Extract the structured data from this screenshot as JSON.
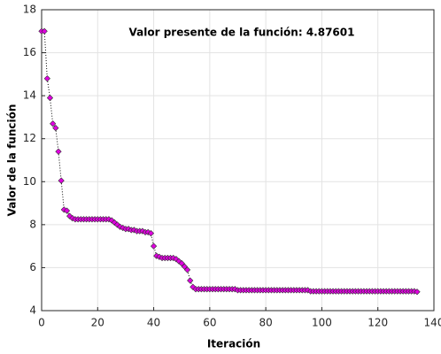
{
  "chart_data": {
    "type": "line",
    "title": "Valor presente de la función: 4.87601",
    "x_label": "Iteración",
    "y_label": "Valor de la función",
    "x": [
      0,
      1,
      2,
      3,
      4,
      5,
      6,
      7,
      8,
      9,
      10,
      11,
      12,
      13,
      14,
      15,
      16,
      17,
      18,
      19,
      20,
      21,
      22,
      23,
      24,
      25,
      26,
      27,
      28,
      29,
      30,
      31,
      32,
      33,
      34,
      35,
      36,
      37,
      38,
      39,
      40,
      41,
      42,
      43,
      44,
      45,
      46,
      47,
      48,
      49,
      50,
      51,
      52,
      53,
      54,
      55,
      56,
      57,
      58,
      59,
      60,
      61,
      62,
      63,
      64,
      65,
      66,
      67,
      68,
      69,
      70,
      71,
      72,
      73,
      74,
      75,
      76,
      77,
      78,
      79,
      80,
      81,
      82,
      83,
      84,
      85,
      86,
      87,
      88,
      89,
      90,
      91,
      92,
      93,
      94,
      95,
      96,
      97,
      98,
      99,
      100,
      101,
      102,
      103,
      104,
      105,
      106,
      107,
      108,
      109,
      110,
      111,
      112,
      113,
      114,
      115,
      116,
      117,
      118,
      119,
      120,
      121,
      122,
      123,
      124,
      125,
      126,
      127,
      128,
      129,
      130,
      131,
      132,
      133,
      134
    ],
    "values": [
      17,
      17,
      14.8,
      13.9,
      12.7,
      12.5,
      11.4,
      10.05,
      8.7,
      8.65,
      8.4,
      8.3,
      8.25,
      8.25,
      8.25,
      8.25,
      8.25,
      8.25,
      8.25,
      8.25,
      8.25,
      8.25,
      8.25,
      8.25,
      8.25,
      8.2,
      8.1,
      8.0,
      7.9,
      7.85,
      7.8,
      7.8,
      7.75,
      7.75,
      7.7,
      7.7,
      7.7,
      7.65,
      7.65,
      7.6,
      7.0,
      6.55,
      6.5,
      6.45,
      6.45,
      6.45,
      6.45,
      6.45,
      6.4,
      6.3,
      6.2,
      6.05,
      5.9,
      5.4,
      5.1,
      5.0,
      5.0,
      5.0,
      5.0,
      5.0,
      5.0,
      5.0,
      5.0,
      5.0,
      5.0,
      5.0,
      5.0,
      5.0,
      5.0,
      5.0,
      4.95,
      4.95,
      4.95,
      4.95,
      4.95,
      4.95,
      4.95,
      4.95,
      4.95,
      4.95,
      4.95,
      4.95,
      4.95,
      4.95,
      4.95,
      4.95,
      4.95,
      4.95,
      4.95,
      4.95,
      4.95,
      4.95,
      4.95,
      4.95,
      4.95,
      4.95,
      4.9,
      4.9,
      4.9,
      4.9,
      4.9,
      4.9,
      4.9,
      4.9,
      4.9,
      4.9,
      4.9,
      4.9,
      4.9,
      4.9,
      4.9,
      4.9,
      4.9,
      4.9,
      4.9,
      4.9,
      4.9,
      4.9,
      4.9,
      4.9,
      4.9,
      4.9,
      4.9,
      4.9,
      4.9,
      4.9,
      4.9,
      4.9,
      4.9,
      4.9,
      4.9,
      4.9,
      4.9,
      4.9,
      4.876
    ],
    "marker_color": "#e000e0",
    "line_color": "#000000",
    "xlim": [
      0,
      140
    ],
    "xticks": [
      0,
      20,
      40,
      60,
      80,
      100,
      120,
      140
    ],
    "ylim": [
      4,
      18
    ],
    "yticks": [
      4,
      6,
      8,
      10,
      12,
      14,
      16,
      18
    ],
    "grid": true
  }
}
